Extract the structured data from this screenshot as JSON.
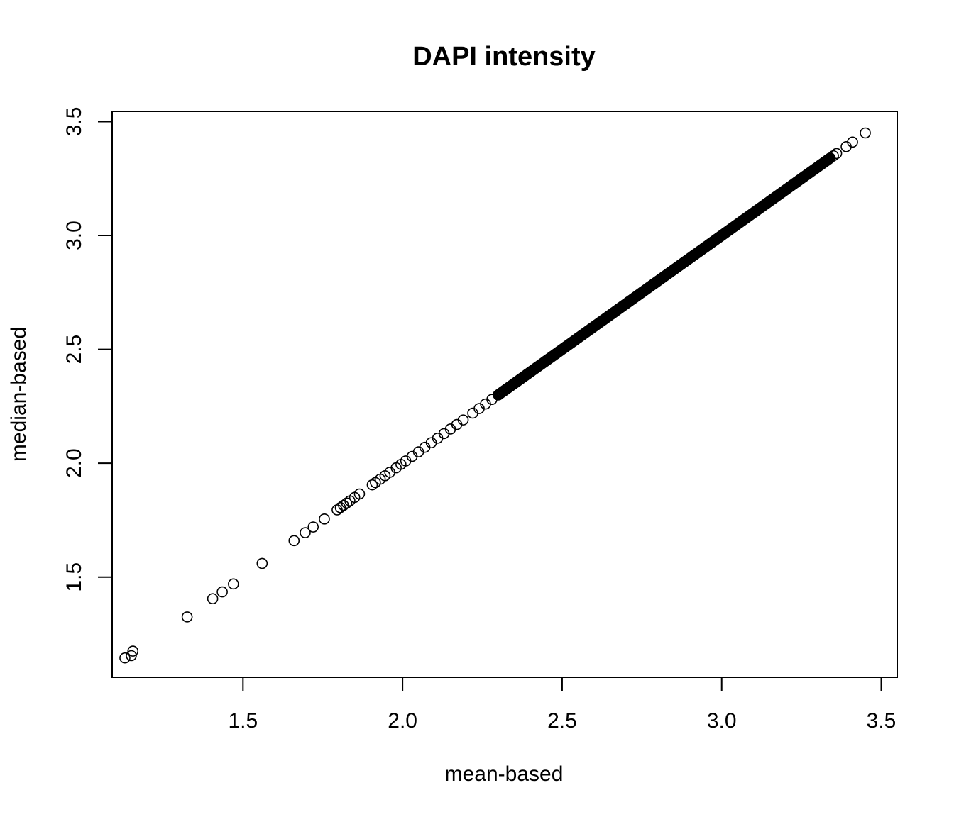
{
  "chart_data": {
    "type": "scatter",
    "title": "DAPI intensity",
    "xlabel": "mean-based",
    "ylabel": "median-based",
    "xlim": [
      1.09,
      3.55
    ],
    "ylim": [
      1.06,
      3.545
    ],
    "xticks": [
      1.5,
      2.0,
      2.5,
      3.0,
      3.5
    ],
    "yticks": [
      1.5,
      2.0,
      2.5,
      3.0,
      3.5
    ],
    "xtick_labels": [
      "1.5",
      "2.0",
      "2.5",
      "3.0",
      "3.5"
    ],
    "ytick_labels": [
      "1.5",
      "2.0",
      "2.5",
      "3.0",
      "3.5"
    ],
    "marker": "open-circle",
    "grid": false,
    "series": [
      {
        "x": [
          1.13,
          1.15,
          1.155,
          1.325,
          1.405,
          1.435,
          1.47,
          1.56,
          1.66,
          1.695,
          1.72,
          1.755,
          1.795,
          1.805,
          1.815,
          1.825,
          1.835,
          1.85,
          1.865,
          1.905,
          1.915,
          1.93,
          1.945,
          1.96,
          1.98,
          1.995,
          2.01,
          2.03,
          2.05,
          2.07,
          2.09,
          2.11,
          2.13,
          2.15,
          2.17,
          2.19,
          2.22,
          2.24,
          2.26,
          2.28,
          2.3,
          2.33,
          2.36,
          2.39,
          2.42,
          2.45,
          2.48,
          2.51,
          2.55,
          2.59,
          2.63,
          2.67,
          2.71,
          2.75,
          2.79,
          2.83,
          2.87,
          2.91,
          2.95,
          2.99,
          3.03,
          3.07,
          3.11,
          3.14,
          3.17,
          3.2,
          3.23,
          3.26,
          3.29,
          3.31,
          3.33,
          3.35,
          3.36,
          3.39,
          3.41,
          3.45
        ],
        "y": [
          1.145,
          1.155,
          1.175,
          1.325,
          1.405,
          1.435,
          1.47,
          1.56,
          1.66,
          1.695,
          1.72,
          1.755,
          1.795,
          1.805,
          1.815,
          1.825,
          1.835,
          1.85,
          1.865,
          1.905,
          1.915,
          1.93,
          1.945,
          1.96,
          1.98,
          1.995,
          2.01,
          2.03,
          2.05,
          2.07,
          2.09,
          2.11,
          2.13,
          2.15,
          2.17,
          2.19,
          2.22,
          2.24,
          2.26,
          2.28,
          2.3,
          2.33,
          2.36,
          2.39,
          2.42,
          2.45,
          2.48,
          2.51,
          2.55,
          2.59,
          2.63,
          2.67,
          2.71,
          2.75,
          2.79,
          2.83,
          2.87,
          2.91,
          2.95,
          2.99,
          3.03,
          3.07,
          3.11,
          3.14,
          3.17,
          3.2,
          3.23,
          3.26,
          3.29,
          3.31,
          3.33,
          3.35,
          3.36,
          3.39,
          3.41,
          3.45
        ]
      }
    ],
    "dense_band": {
      "description": "",
      "x_range": [
        2.3,
        3.34
      ]
    }
  }
}
